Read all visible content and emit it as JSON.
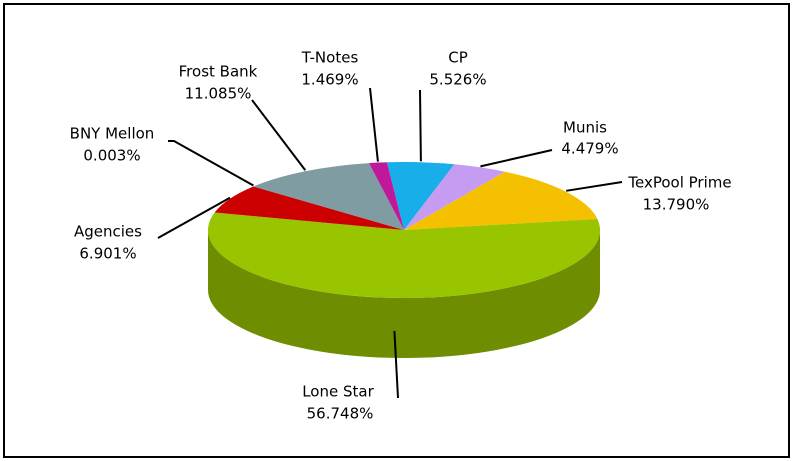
{
  "chart_data": {
    "type": "pie3d",
    "categories": [
      "CP",
      "Munis",
      "TexPool Prime",
      "Lone Star",
      "Agencies",
      "BNY Mellon",
      "Frost Bank",
      "T-Notes"
    ],
    "values": [
      5.526,
      4.479,
      13.79,
      56.748,
      6.901,
      0.003,
      11.085,
      1.469
    ],
    "value_labels": [
      "5.526%",
      "4.479%",
      "13.790%",
      "56.748%",
      "6.901%",
      "0.003%",
      "11.085%",
      "1.469%"
    ],
    "colors": [
      "#17aeea",
      "#c69cf2",
      "#f5c000",
      "#99c400",
      "#cc0000",
      "#2050a0",
      "#7f9ca2",
      "#c0189a"
    ]
  }
}
